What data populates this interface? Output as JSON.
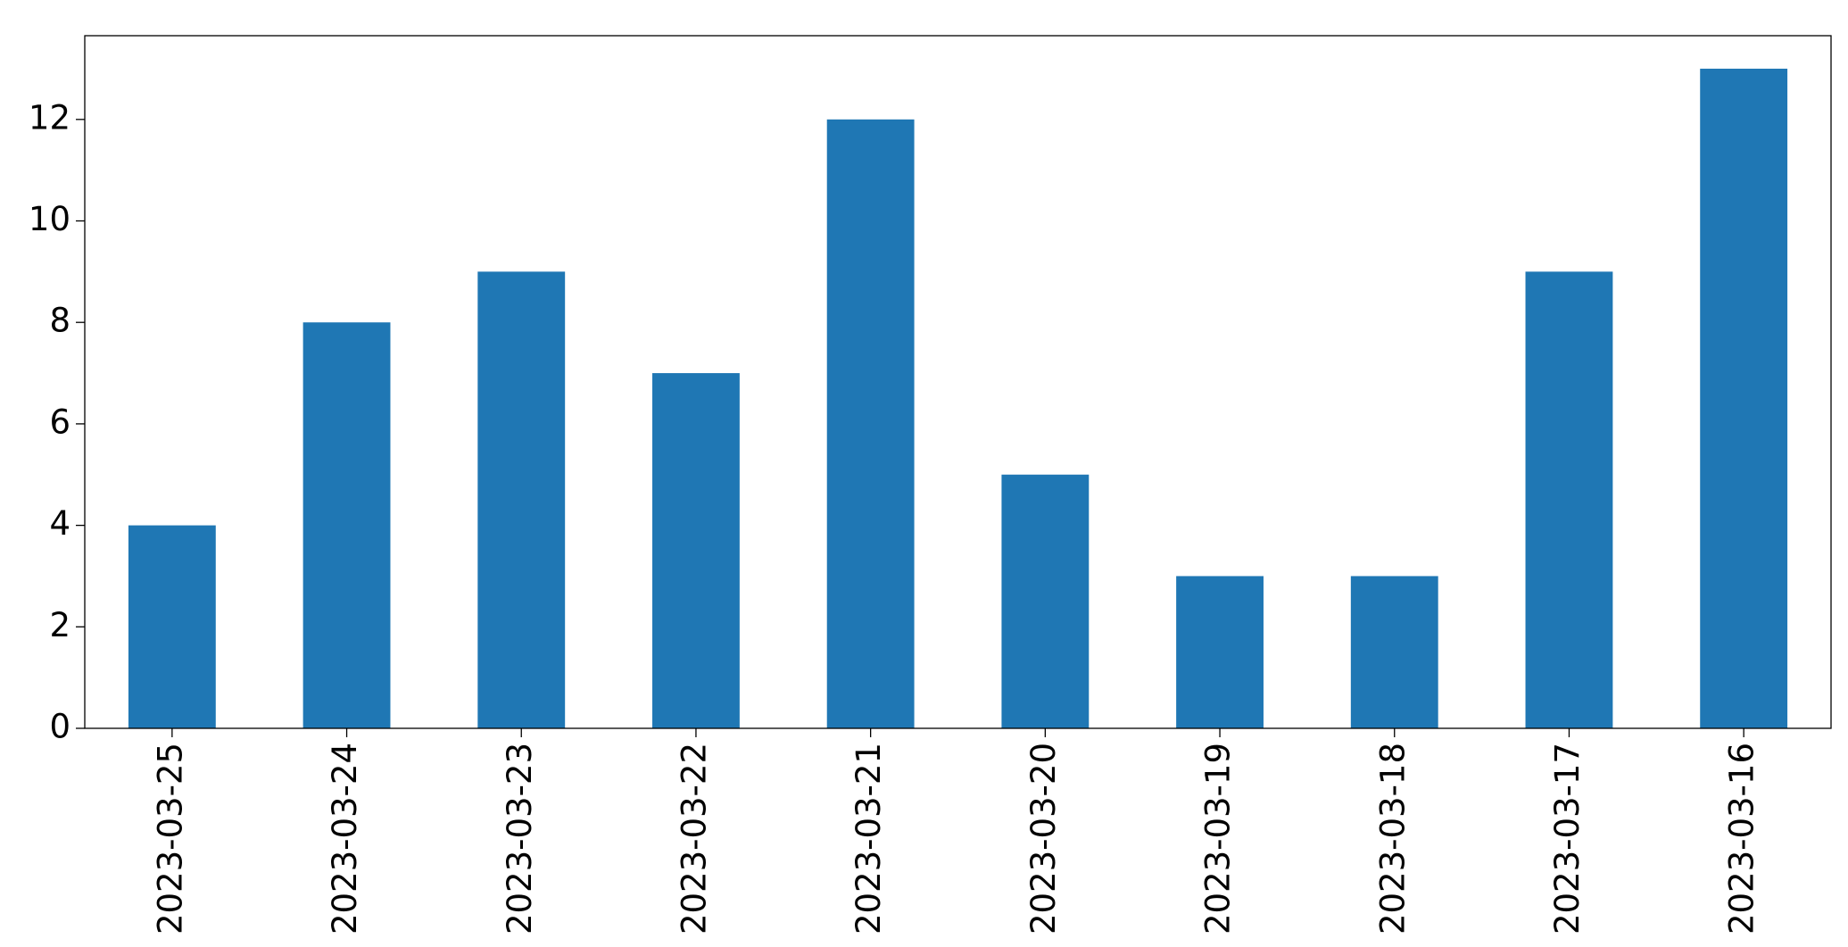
{
  "chart_data": {
    "type": "bar",
    "categories": [
      "2023-03-25",
      "2023-03-24",
      "2023-03-23",
      "2023-03-22",
      "2023-03-21",
      "2023-03-20",
      "2023-03-19",
      "2023-03-18",
      "2023-03-17",
      "2023-03-16"
    ],
    "values": [
      4,
      8,
      9,
      7,
      12,
      5,
      3,
      3,
      9,
      13
    ],
    "color": "#1f77b4",
    "ylim": [
      0,
      13.65
    ],
    "yticks": [
      0,
      2,
      4,
      6,
      8,
      10,
      12
    ],
    "grid": false
  }
}
